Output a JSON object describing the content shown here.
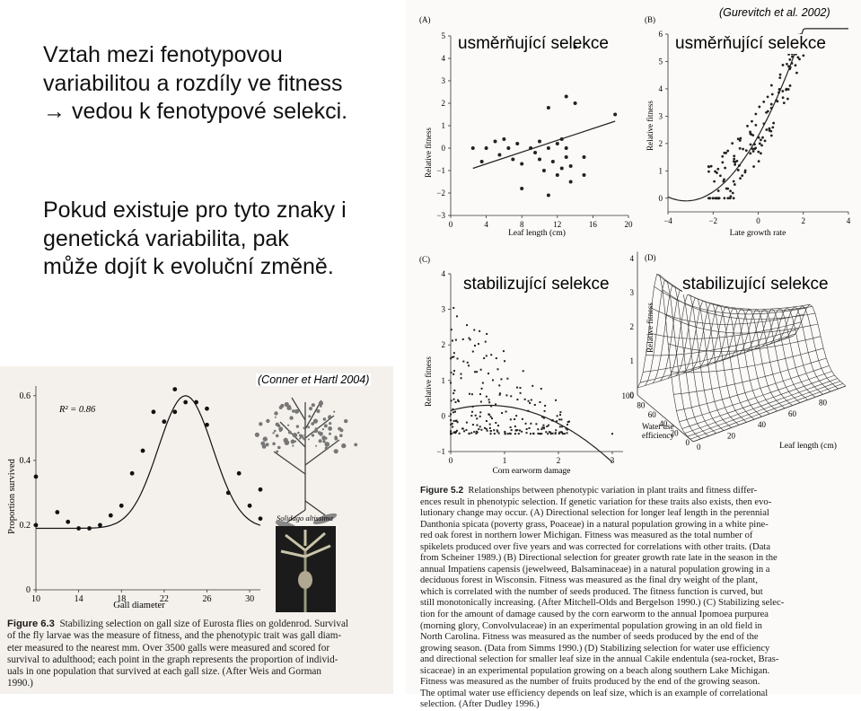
{
  "slide": {
    "paragraph1": "Vztah mezi fenotypovou variabilitou a rozdíly ve fitness → vedou k fenotypové selekci.",
    "paragraph2": "Pokud existuje pro tyto znaky i genetická variabilita, pak může dojít k evoluční změně.",
    "citation_right": "(Gurevitch et al. 2002)",
    "citation_left": "(Conner et Hartl 2004)",
    "label_directional": "usměrňující  selekce",
    "label_stabilizing": "stabilizující  selekce"
  },
  "figure52": {
    "panel_letters": [
      "(A)",
      "(B)",
      "(C)",
      "(D)"
    ],
    "y_label": "Relative fitness",
    "x_label_A": "Leaf length (cm)",
    "x_label_B": "Late growth rate",
    "x_label_C": "Corn earworm damage",
    "x_label_D": "Leaf length (cm)",
    "z_label_D": "Water use efficiency",
    "caption_title": "Figure 5.2",
    "caption_lines": [
      "Relationships between phenotypic variation in plant traits and fitness differ-",
      "ences result in phenotypic selection. If genetic variation for these traits also exists, then evo-",
      "lutionary change may occur. (A) Directional selection for longer leaf length in the perennial",
      "Danthonia spicata (poverty grass, Poaceae) in a natural population growing in a white pine-",
      "red oak forest in northern lower Michigan. Fitness was measured as the total number of",
      "spikelets produced over five years and was corrected for correlations with other traits. (Data",
      "from Scheiner 1989.) (B) Directional selection for greater growth rate late in the season in the",
      "annual Impatiens capensis (jewelweed, Balsaminaceae) in a natural population growing in a",
      "deciduous forest in Wisconsin. Fitness was measured as the final dry weight of the plant,",
      "which is correlated with the number of seeds produced. The fitness function is curved, but",
      "still monotonically increasing. (After Mitchell-Olds and Bergelson 1990.) (C) Stabilizing selec-",
      "tion for the amount of damage caused by the corn earworm to the annual Ipomoea purpurea",
      "(morning glory, Convolvulaceae) in an experimental population growing in an old field in",
      "North Carolina. Fitness was measured as the number of seeds produced by the end of the",
      "growing season. (Data from Simms 1990.) (D) Stabilizing selection for water use efficiency",
      "and directional selection for smaller leaf size in the annual Cakile endentula (sea-rocket, Bras-",
      "sicaceae) in an experimental population growing on a beach along southern Lake Michigan.",
      "Fitness was measured as the number of fruits produced by the end of the growing season.",
      "The optimal water use efficiency depends on leaf size, which is an example of correlational",
      "selection. (After Dudley 1996.)"
    ]
  },
  "figure63": {
    "y_label": "Proportion survived",
    "x_label": "Gall diameter",
    "r2": "R² = 0.86",
    "species": "Solidago altissima",
    "caption_title": "Figure 6.3",
    "caption_lines": [
      "Stabilizing selection on gall size of Eurosta flies on goldenrod. Survival",
      "of the fly larvae was the measure of fitness, and the phenotypic trait was gall diam-",
      "eter measured to the nearest mm. Over 3500 galls were measured and scored for",
      "survival to adulthood; each point in the graph represents the proportion of individ-",
      "uals in one population that survived at each gall size. (After Weis and Gorman",
      "1990.)"
    ]
  },
  "chart_data": [
    {
      "panel": "(A)",
      "type": "scatter",
      "xlabel": "Leaf length (cm)",
      "ylabel": "Relative fitness",
      "xlim": [
        0,
        20
      ],
      "ylim": [
        -3,
        5
      ],
      "xticks": [
        0,
        4,
        8,
        12,
        16,
        20
      ],
      "yticks": [
        -3,
        -2,
        -1,
        0,
        1,
        2,
        3,
        4,
        5
      ],
      "points": [
        [
          2.5,
          0
        ],
        [
          3.5,
          -0.6
        ],
        [
          4,
          0
        ],
        [
          5,
          0.3
        ],
        [
          5.5,
          -0.3
        ],
        [
          6,
          0.4
        ],
        [
          6.5,
          0
        ],
        [
          7,
          -0.5
        ],
        [
          7.5,
          0.2
        ],
        [
          8,
          -0.7
        ],
        [
          8,
          -1.8
        ],
        [
          9,
          0
        ],
        [
          9.5,
          -0.2
        ],
        [
          10,
          0.3
        ],
        [
          10,
          -0.5
        ],
        [
          10.5,
          -1
        ],
        [
          11,
          0
        ],
        [
          11,
          1.8
        ],
        [
          11.5,
          -0.6
        ],
        [
          12,
          0.2
        ],
        [
          12,
          -1.2
        ],
        [
          12.5,
          0.4
        ],
        [
          12.5,
          -0.9
        ],
        [
          13,
          0
        ],
        [
          13,
          -0.4
        ],
        [
          13,
          2.3
        ],
        [
          13.5,
          -0.8
        ],
        [
          13.5,
          -1.5
        ],
        [
          14,
          2
        ],
        [
          14,
          4.5
        ],
        [
          15,
          -0.4
        ],
        [
          15,
          -1.2
        ],
        [
          11,
          -2.1
        ],
        [
          18.5,
          1.5
        ]
      ],
      "fit_line": [
        [
          2.5,
          -0.9
        ],
        [
          18.5,
          1.2
        ]
      ]
    },
    {
      "panel": "(B)",
      "type": "scatter",
      "xlabel": "Late growth rate",
      "ylabel": "Relative fitness",
      "xlim": [
        -4,
        4
      ],
      "ylim": [
        -0.5,
        6
      ],
      "xticks": [
        -4,
        -2,
        0,
        2,
        4
      ],
      "yticks": [
        0,
        1,
        2,
        3,
        4,
        5,
        6
      ],
      "curve": "quadratic, minimum near x=-3.2, rising to about 6 at x=4"
    },
    {
      "panel": "(C)",
      "type": "scatter",
      "xlabel": "Corn earworm damage",
      "ylabel": "Relative fitness",
      "xlim": [
        0,
        3.2
      ],
      "ylim": [
        -1,
        4
      ],
      "xticks": [
        0,
        1,
        2,
        3
      ],
      "yticks": [
        -1,
        0,
        1,
        2,
        3,
        4
      ],
      "curve": "hump with peak about 0.3 near x=0.7"
    },
    {
      "panel": "(D)",
      "type": "surface",
      "xlabel": "Leaf length (cm)",
      "zlabel": "Water use efficiency",
      "ylabel": "Relative fitness",
      "x_ticks": [
        0,
        20,
        40,
        60,
        80
      ],
      "w_ticks": [
        0,
        20,
        40,
        60,
        80,
        100
      ],
      "y_ticks": [
        0,
        1,
        2,
        3,
        4
      ]
    },
    {
      "panel": "Figure 6.3",
      "type": "scatter",
      "xlabel": "Gall diameter",
      "ylabel": "Proportion survived",
      "xlim": [
        10,
        31
      ],
      "ylim": [
        0,
        0.63
      ],
      "xticks": [
        10,
        14,
        18,
        22,
        26,
        30
      ],
      "yticks": [
        0,
        0.2,
        0.4,
        0.6
      ],
      "points": [
        [
          10,
          0.35
        ],
        [
          10,
          0.2
        ],
        [
          12,
          0.24
        ],
        [
          13,
          0.21
        ],
        [
          14,
          0.19
        ],
        [
          15,
          0.19
        ],
        [
          16,
          0.2
        ],
        [
          17,
          0.23
        ],
        [
          18,
          0.26
        ],
        [
          19,
          0.36
        ],
        [
          20,
          0.43
        ],
        [
          21,
          0.55
        ],
        [
          22,
          0.52
        ],
        [
          23,
          0.55
        ],
        [
          23,
          0.62
        ],
        [
          24,
          0.58
        ],
        [
          25,
          0.58
        ],
        [
          26,
          0.51
        ],
        [
          26,
          0.56
        ],
        [
          28,
          0.3
        ],
        [
          29,
          0.36
        ],
        [
          30,
          0.26
        ],
        [
          31,
          0.22
        ],
        [
          31,
          0.31
        ]
      ],
      "fit_curve": "bell-shaped, peak about 0.6 near gall diameter 24"
    }
  ]
}
